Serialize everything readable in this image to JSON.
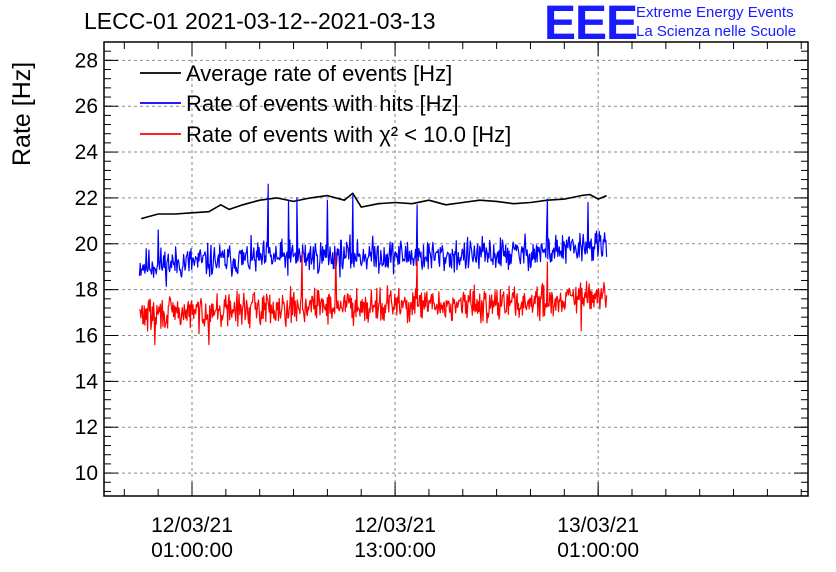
{
  "header": {
    "title": "LECC-01 2021-03-12--2021-03-13",
    "logo": "EEE",
    "logo_line1": "Extreme Energy Events",
    "logo_line2": "La Scienza nelle Scuole"
  },
  "chart_data": {
    "type": "line",
    "title": "LECC-01 2021-03-12--2021-03-13",
    "ylabel": "Rate [Hz]",
    "xlabel": "",
    "ylim": [
      9,
      28.8
    ],
    "yticks": [
      10,
      12,
      14,
      16,
      18,
      20,
      22,
      24,
      26,
      28
    ],
    "xlim_hours": [
      -5.2,
      36.4
    ],
    "xtick_labels": [
      {
        "hour": 0,
        "line1": "12/03/21",
        "line2": "01:00:00"
      },
      {
        "hour": 12,
        "line1": "12/03/21",
        "line2": "13:00:00"
      },
      {
        "hour": 24,
        "line1": "13/03/21",
        "line2": "01:00:00"
      }
    ],
    "grid": true,
    "legend_position": "top-left",
    "series": [
      {
        "name": "Average rate of events [Hz]",
        "color": "#000000",
        "style": "smooth",
        "x": [
          -3.0,
          -2.0,
          -1.0,
          0.0,
          1.0,
          1.7,
          2.2,
          3.0,
          4.0,
          5.0,
          6.0,
          7.0,
          8.0,
          9.0,
          9.5,
          10.0,
          11.0,
          12.0,
          13.0,
          14.0,
          15.0,
          16.0,
          17.0,
          18.0,
          19.0,
          20.0,
          21.0,
          22.0,
          23.0,
          23.5,
          24.0,
          24.5
        ],
        "values": [
          21.1,
          21.3,
          21.3,
          21.35,
          21.4,
          21.7,
          21.5,
          21.7,
          21.9,
          22.0,
          21.85,
          22.0,
          22.1,
          21.9,
          22.2,
          21.6,
          21.75,
          21.8,
          21.75,
          21.9,
          21.7,
          21.8,
          21.9,
          21.85,
          21.75,
          21.8,
          21.9,
          21.95,
          22.1,
          22.15,
          21.95,
          22.1
        ]
      },
      {
        "name": "Rate of events with hits [Hz]",
        "color": "#0000ff",
        "style": "noisy",
        "x_range": [
          -3.1,
          24.5
        ],
        "points": 700,
        "base": [
          [
            -3.1,
            19.05
          ],
          [
            0,
            19.2
          ],
          [
            5,
            19.4
          ],
          [
            10,
            19.5
          ],
          [
            15,
            19.45
          ],
          [
            20,
            19.6
          ],
          [
            24.5,
            19.9
          ]
        ],
        "noise": 0.55,
        "seed": 11,
        "spikes": [
          [
            -2.0,
            20.6
          ],
          [
            4.5,
            22.6
          ],
          [
            5.7,
            21.9
          ],
          [
            6.2,
            22.0
          ],
          [
            8.0,
            21.9
          ],
          [
            9.5,
            22.1
          ],
          [
            13.3,
            21.7
          ],
          [
            21.0,
            21.95
          ],
          [
            23.4,
            21.8
          ]
        ]
      },
      {
        "name": "Rate of events with χ² < 10.0 [Hz]",
        "color": "#ff0000",
        "style": "noisy",
        "x_range": [
          -3.1,
          24.5
        ],
        "points": 700,
        "base": [
          [
            -3.1,
            16.9
          ],
          [
            0,
            17.0
          ],
          [
            5,
            17.25
          ],
          [
            10,
            17.35
          ],
          [
            15,
            17.3
          ],
          [
            20,
            17.45
          ],
          [
            24.5,
            17.7
          ]
        ],
        "noise": 0.55,
        "seed": 29,
        "spikes": [
          [
            -2.2,
            15.6
          ],
          [
            1.0,
            15.6
          ],
          [
            6.5,
            19.6
          ],
          [
            8.5,
            19.6
          ],
          [
            13.3,
            19.3
          ],
          [
            21.0,
            19.2
          ],
          [
            23.0,
            16.2
          ]
        ]
      }
    ]
  }
}
